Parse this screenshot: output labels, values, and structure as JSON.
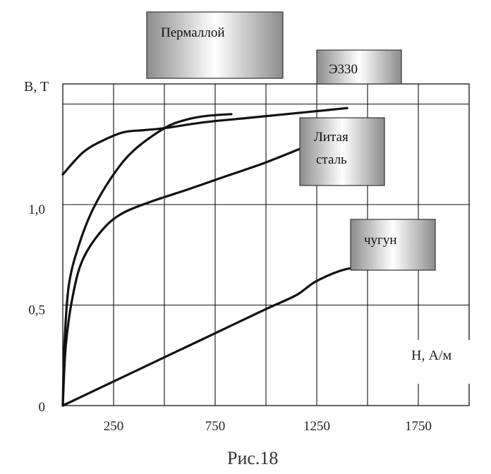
{
  "chart_data": {
    "type": "line",
    "caption": "Рис.18",
    "ylabel": "B, T",
    "xlabel": "H, А/м",
    "x_ticks": [
      {
        "value": 250,
        "label": "250"
      },
      {
        "value": 750,
        "label": "750"
      },
      {
        "value": 1250,
        "label": "1250"
      },
      {
        "value": 1750,
        "label": "1750"
      }
    ],
    "y_ticks": [
      {
        "value": 0,
        "label": "0"
      },
      {
        "value": 0.5,
        "label": "0,5"
      },
      {
        "value": 1.0,
        "label": "1,0"
      }
    ],
    "xlim": [
      0,
      2000
    ],
    "ylim": [
      0,
      1.6
    ],
    "grid": true,
    "series": [
      {
        "name": "Пермаллой",
        "points": [
          [
            0,
            0
          ],
          [
            8,
            0.3
          ],
          [
            30,
            0.6
          ],
          [
            80,
            0.8
          ],
          [
            150,
            0.98
          ],
          [
            250,
            1.15
          ],
          [
            350,
            1.27
          ],
          [
            500,
            1.38
          ],
          [
            600,
            1.42
          ],
          [
            700,
            1.44
          ],
          [
            830,
            1.45
          ]
        ]
      },
      {
        "name": "Э330",
        "points": [
          [
            0,
            1.15
          ],
          [
            100,
            1.26
          ],
          [
            200,
            1.32
          ],
          [
            300,
            1.36
          ],
          [
            400,
            1.37
          ],
          [
            500,
            1.38
          ],
          [
            700,
            1.41
          ],
          [
            900,
            1.43
          ],
          [
            1100,
            1.45
          ],
          [
            1300,
            1.47
          ],
          [
            1400,
            1.48
          ]
        ]
      },
      {
        "name": "Литая сталь",
        "points": [
          [
            0,
            0
          ],
          [
            15,
            0.3
          ],
          [
            50,
            0.55
          ],
          [
            100,
            0.73
          ],
          [
            200,
            0.88
          ],
          [
            300,
            0.96
          ],
          [
            450,
            1.02
          ],
          [
            600,
            1.07
          ],
          [
            800,
            1.14
          ],
          [
            1000,
            1.21
          ],
          [
            1200,
            1.29
          ],
          [
            1330,
            1.34
          ]
        ]
      },
      {
        "name": "чугун",
        "points": [
          [
            0,
            0
          ],
          [
            250,
            0.12
          ],
          [
            500,
            0.24
          ],
          [
            750,
            0.36
          ],
          [
            1000,
            0.48
          ],
          [
            1150,
            0.55
          ],
          [
            1250,
            0.62
          ],
          [
            1400,
            0.68
          ],
          [
            1550,
            0.69
          ],
          [
            1650,
            0.69
          ]
        ]
      }
    ],
    "labels": [
      {
        "text": "Пермаллой",
        "series": "Пермаллой"
      },
      {
        "text": "Э330",
        "series": "Э330"
      },
      {
        "lines": [
          "Литая",
          "сталь"
        ],
        "series": "Литая сталь"
      },
      {
        "text": "чугун",
        "series": "чугун"
      }
    ]
  }
}
